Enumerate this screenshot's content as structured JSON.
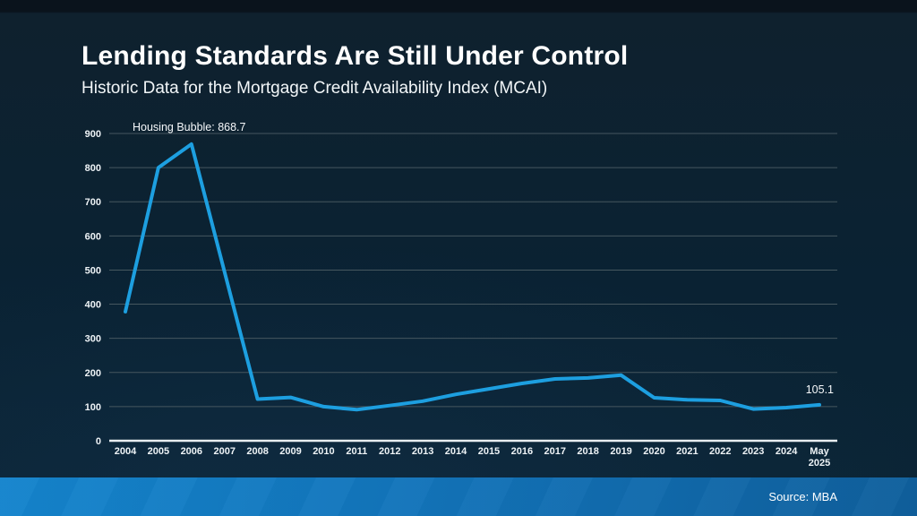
{
  "slide": {
    "title": "Lending Standards Are Still Under Control",
    "subtitle": "Historic Data for the Mortgage Credit Availability Index (MCAI)",
    "footer": {
      "source_label": "Source: MBA"
    }
  },
  "chart_data": {
    "type": "line",
    "title": "Historic Data for the Mortgage Credit Availability Index (MCAI)",
    "categories": [
      "2004",
      "2005",
      "2006",
      "2007",
      "2008",
      "2009",
      "2010",
      "2011",
      "2012",
      "2013",
      "2014",
      "2015",
      "2016",
      "2017",
      "2018",
      "2019",
      "2020",
      "2021",
      "2022",
      "2023",
      "2024",
      "May 2025"
    ],
    "values": [
      378,
      800,
      868.7,
      495,
      122,
      127,
      100,
      91,
      103,
      116,
      136,
      152,
      168,
      181,
      184,
      192,
      126,
      120,
      118,
      93,
      97,
      105.1
    ],
    "xlabel": "",
    "ylabel": "",
    "ylim": [
      0,
      900
    ],
    "ytick_step": 100,
    "grid": true,
    "legend": "none",
    "peak_annotation": {
      "text": "Housing Bubble: 868.7",
      "year": "2006",
      "value": 868.7
    },
    "end_annotation": {
      "text": "105.1",
      "year": "May 2025",
      "value": 105.1
    },
    "colors": {
      "line": "#1D9FE0",
      "grid": "#46575F",
      "axis": "#E8EDF0",
      "tick_text": "#EEF3F6"
    }
  }
}
